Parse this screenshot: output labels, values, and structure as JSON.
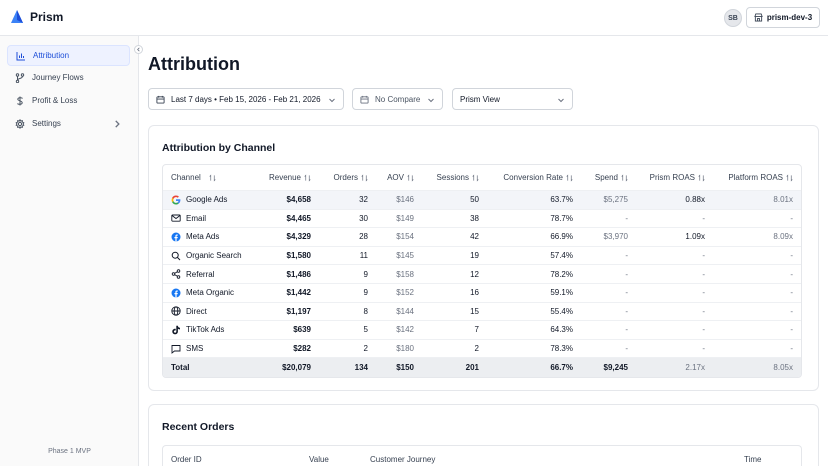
{
  "app": {
    "name": "Prism",
    "logo_color": "#2563eb"
  },
  "header": {
    "avatar_initials": "SB",
    "workspace": "prism-dev-3"
  },
  "sidebar": {
    "items": [
      {
        "label": "Attribution",
        "icon": "bar-chart-icon",
        "active": true
      },
      {
        "label": "Journey Flows",
        "icon": "git-branch-icon"
      },
      {
        "label": "Profit & Loss",
        "icon": "dollar-icon"
      },
      {
        "label": "Settings",
        "icon": "gear-icon",
        "has_chevron": true
      }
    ],
    "footer": "Phase 1 MVP"
  },
  "page": {
    "title": "Attribution"
  },
  "filters": {
    "date_range": "Last 7 days • Feb 15, 2026 - Feb 21, 2026",
    "compare": "No Compare",
    "view": "Prism View"
  },
  "attribution": {
    "title": "Attribution by Channel",
    "columns": [
      "Channel",
      "Revenue",
      "Orders",
      "AOV",
      "Sessions",
      "Conversion Rate",
      "Spend",
      "Prism ROAS",
      "Platform ROAS"
    ],
    "rows": [
      {
        "channel": "Google Ads",
        "icon": "google-icon",
        "revenue": "$4,658",
        "orders": "32",
        "aov": "$146",
        "sessions": "50",
        "cr": "63.7%",
        "spend": "$5,275",
        "prism_roas": "0.88x",
        "platform_roas": "8.01x"
      },
      {
        "channel": "Email",
        "icon": "mail-icon",
        "revenue": "$4,465",
        "orders": "30",
        "aov": "$149",
        "sessions": "38",
        "cr": "78.7%",
        "spend": "-",
        "prism_roas": "-",
        "platform_roas": "-"
      },
      {
        "channel": "Meta Ads",
        "icon": "meta-icon",
        "revenue": "$4,329",
        "orders": "28",
        "aov": "$154",
        "sessions": "42",
        "cr": "66.9%",
        "spend": "$3,970",
        "prism_roas": "1.09x",
        "platform_roas": "8.09x"
      },
      {
        "channel": "Organic Search",
        "icon": "search-icon",
        "revenue": "$1,580",
        "orders": "11",
        "aov": "$145",
        "sessions": "19",
        "cr": "57.4%",
        "spend": "-",
        "prism_roas": "-",
        "platform_roas": "-"
      },
      {
        "channel": "Referral",
        "icon": "share-icon",
        "revenue": "$1,486",
        "orders": "9",
        "aov": "$158",
        "sessions": "12",
        "cr": "78.2%",
        "spend": "-",
        "prism_roas": "-",
        "platform_roas": "-"
      },
      {
        "channel": "Meta Organic",
        "icon": "meta-icon",
        "revenue": "$1,442",
        "orders": "9",
        "aov": "$152",
        "sessions": "16",
        "cr": "59.1%",
        "spend": "-",
        "prism_roas": "-",
        "platform_roas": "-"
      },
      {
        "channel": "Direct",
        "icon": "globe-icon",
        "revenue": "$1,197",
        "orders": "8",
        "aov": "$144",
        "sessions": "15",
        "cr": "55.4%",
        "spend": "-",
        "prism_roas": "-",
        "platform_roas": "-"
      },
      {
        "channel": "TikTok Ads",
        "icon": "tiktok-icon",
        "revenue": "$639",
        "orders": "5",
        "aov": "$142",
        "sessions": "7",
        "cr": "64.3%",
        "spend": "-",
        "prism_roas": "-",
        "platform_roas": "-"
      },
      {
        "channel": "SMS",
        "icon": "message-icon",
        "revenue": "$282",
        "orders": "2",
        "aov": "$180",
        "sessions": "2",
        "cr": "78.3%",
        "spend": "-",
        "prism_roas": "-",
        "platform_roas": "-"
      }
    ],
    "total": {
      "channel": "Total",
      "revenue": "$20,079",
      "orders": "134",
      "aov": "$150",
      "sessions": "201",
      "cr": "66.7%",
      "spend": "$9,245",
      "prism_roas": "2.17x",
      "platform_roas": "8.05x"
    }
  },
  "orders": {
    "title": "Recent Orders",
    "columns": [
      "Order ID",
      "Value",
      "Customer Journey",
      "Time"
    ]
  }
}
